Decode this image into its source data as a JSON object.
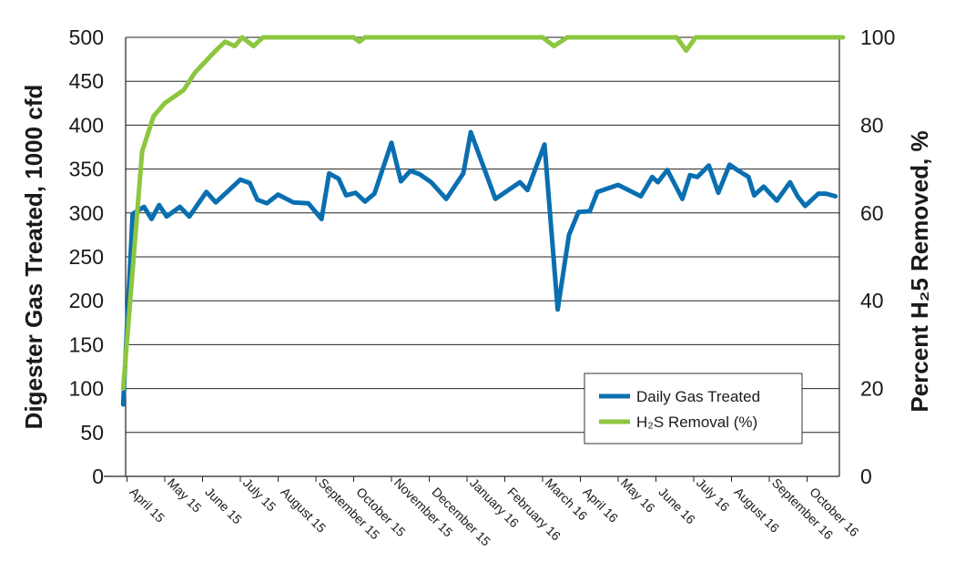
{
  "chart_data": {
    "type": "line",
    "ylabel_left": "Digester Gas Treated, 1000 cfd",
    "ylabel_right": "Percent H₂5 Removed, %",
    "ylim_left": [
      0,
      500
    ],
    "ylim_right": [
      0,
      100
    ],
    "yticks_left": [
      "0",
      "50",
      "100",
      "150",
      "200",
      "250",
      "300",
      "350",
      "400",
      "450",
      "500"
    ],
    "yticks_right": [
      "0",
      "20",
      "40",
      "60",
      "80",
      "100"
    ],
    "x_tick_labels": [
      "April 15",
      "May 15",
      "June 15",
      "July 15",
      "August 15",
      "September 15",
      "October 15",
      "November 15",
      "December 15",
      "January 16",
      "February 16",
      "March 16",
      "April 16",
      "May 16",
      "June 16",
      "July 16",
      "August 16",
      "September 16",
      "October 16"
    ],
    "x_unit": "months since April 15",
    "grid": "horizontal",
    "legend_position": "bottom-right",
    "series": [
      {
        "name": "Daily Gas Treated",
        "axis": "left",
        "color": "#0a6fb0",
        "x": [
          -0.1,
          0.15,
          0.45,
          0.65,
          0.85,
          1.05,
          1.4,
          1.65,
          2.1,
          2.35,
          2.65,
          3.0,
          3.25,
          3.45,
          3.7,
          4.0,
          4.4,
          4.8,
          5.15,
          5.35,
          5.6,
          5.8,
          6.05,
          6.3,
          6.55,
          7.0,
          7.25,
          7.5,
          7.75,
          8.05,
          8.45,
          8.9,
          9.1,
          9.45,
          9.75,
          10.4,
          10.6,
          11.05,
          11.4,
          11.7,
          11.95,
          12.25,
          12.45,
          13.0,
          13.6,
          13.9,
          14.05,
          14.3,
          14.7,
          14.9,
          15.1,
          15.4,
          15.65,
          15.95,
          16.15,
          16.45,
          16.6,
          16.85,
          17.2,
          17.55,
          17.75,
          17.95,
          18.3,
          18.5,
          18.75
        ],
        "y": [
          82,
          299,
          307,
          293,
          309,
          296,
          307,
          296,
          324,
          312,
          324,
          338,
          334,
          315,
          311,
          321,
          312,
          311,
          293,
          345,
          339,
          320,
          323,
          313,
          322,
          380,
          336,
          348,
          344,
          335,
          316,
          345,
          392,
          351,
          316,
          335,
          326,
          378,
          190,
          275,
          301,
          302,
          324,
          332,
          319,
          341,
          335,
          349,
          316,
          343,
          341,
          354,
          323,
          355,
          349,
          341,
          320,
          330,
          314,
          335,
          319,
          308,
          322,
          322,
          319
        ]
      },
      {
        "name": "H₂S Removal (%)",
        "axis": "right",
        "color": "#8dc63f",
        "x": [
          -0.1,
          0.4,
          0.7,
          1.0,
          1.5,
          1.8,
          2.35,
          2.6,
          2.85,
          3.05,
          3.35,
          3.6,
          6.0,
          6.15,
          6.3,
          11.0,
          11.3,
          11.65,
          14.55,
          14.8,
          15.05,
          18.95
        ],
        "y": [
          20,
          74,
          82,
          85,
          88,
          92,
          97,
          99,
          98,
          100,
          98,
          100,
          100,
          99,
          100,
          100,
          98,
          100,
          100,
          97,
          100,
          100
        ]
      }
    ]
  }
}
